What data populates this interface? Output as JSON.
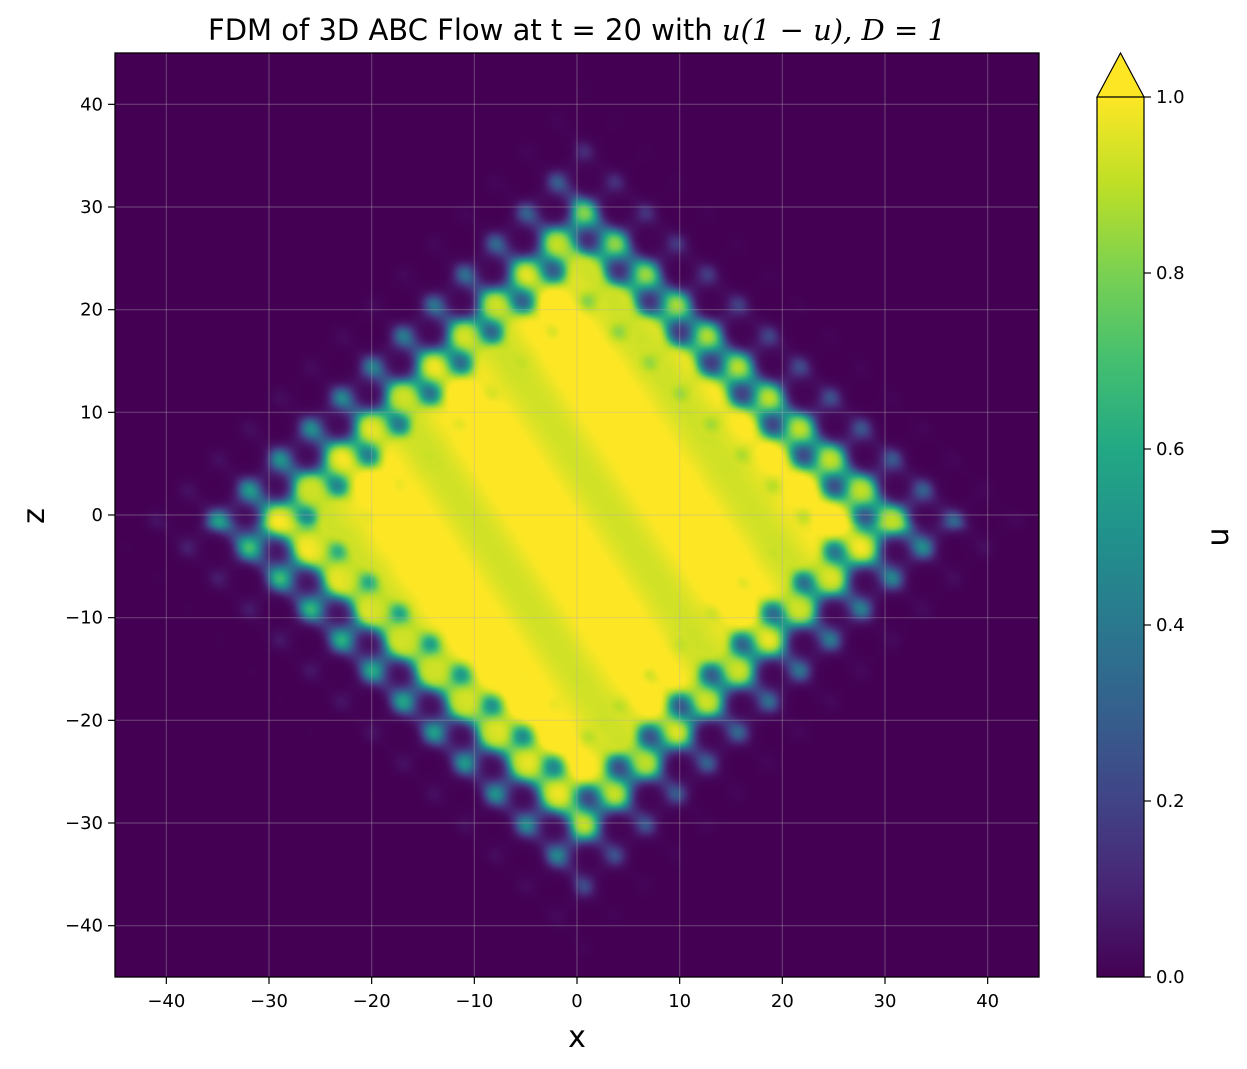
{
  "chart_data": {
    "type": "heatmap",
    "title_text": "FDM of 3D ABC Flow at t = 20 with ",
    "title_math": "u(1 − u), D = 1",
    "xlabel": "x",
    "ylabel": "z",
    "xlim": [
      -45,
      45
    ],
    "ylim": [
      -45,
      45
    ],
    "xticks": [
      -40,
      -30,
      -20,
      -10,
      0,
      10,
      20,
      30,
      40
    ],
    "yticks": [
      -40,
      -30,
      -20,
      -10,
      0,
      10,
      20,
      30,
      40
    ],
    "grid": true,
    "colormap": "viridis",
    "colorbar": {
      "label": "u",
      "range": [
        0.0,
        1.0
      ],
      "ticks": [
        0.0,
        0.2,
        0.4,
        0.6,
        0.8,
        1.0
      ],
      "tick_labels": [
        "0.0",
        "0.2",
        "0.4",
        "0.6",
        "0.8",
        "1.0"
      ],
      "extend": "max"
    },
    "field": {
      "description": "diamond-shaped region with u≈1 inside, wavy edge, u≈0 outside",
      "center": [
        0,
        -1
      ],
      "half_extent_x": 33,
      "half_extent_z": 31,
      "boundary_ripple_amplitude": 2.5,
      "boundary_ripple_period": 6,
      "background_value": 0.0,
      "interior_value": 1.0
    }
  },
  "colors": {
    "low": "#440154",
    "high": "#fde725"
  }
}
